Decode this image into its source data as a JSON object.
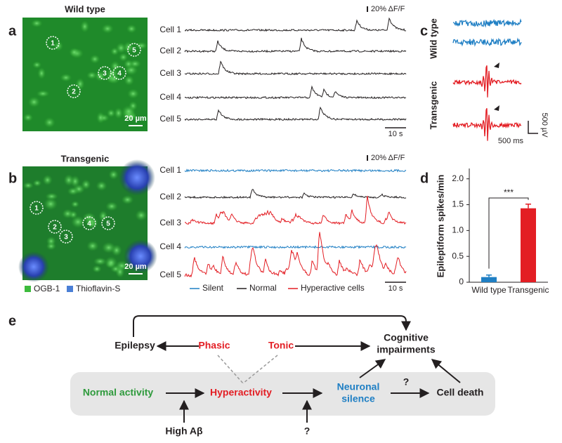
{
  "panel_a": {
    "label": "a",
    "title": "Wild type",
    "cells": [
      "1",
      "2",
      "3",
      "4",
      "5"
    ],
    "scale_bar": "20 µm",
    "traces": [
      "Cell 1",
      "Cell 2",
      "Cell 3",
      "Cell 4",
      "Cell 5"
    ],
    "dff_scale": "20% ΔF/F",
    "time_scale": "10 s"
  },
  "panel_b": {
    "label": "b",
    "title": "Transgenic",
    "cells": [
      "1",
      "2",
      "3",
      "4",
      "5"
    ],
    "scale_bar": "20 µm",
    "traces": [
      {
        "name": "Cell 1",
        "color": "#1f7fc4"
      },
      {
        "name": "Cell 2",
        "color": "#231f20"
      },
      {
        "name": "Cell 3",
        "color": "#e31e24"
      },
      {
        "name": "Cell 4",
        "color": "#1f7fc4"
      },
      {
        "name": "Cell 5",
        "color": "#e31e24"
      }
    ],
    "dff_scale": "20% ΔF/F",
    "time_scale": "10 s",
    "image_legend": [
      {
        "name": "OGB-1",
        "color": "#3dbb3d"
      },
      {
        "name": "Thioflavin-S",
        "color": "#4a7fd6"
      }
    ],
    "trace_legend": [
      {
        "name": "Silent",
        "color": "#1f7fc4"
      },
      {
        "name": "Normal",
        "color": "#231f20"
      },
      {
        "name": "Hyperactive cells",
        "color": "#e31e24"
      }
    ]
  },
  "panel_c": {
    "label": "c",
    "groups": [
      {
        "name": "Wild type",
        "color": "#1f7fc4"
      },
      {
        "name": "Transgenic",
        "color": "#e31e24"
      }
    ],
    "time_scale": "500 ms",
    "voltage_scale": "500 µV"
  },
  "chart_data": {
    "type": "bar",
    "label": "d",
    "y_label": "Epileptiform spikes/min",
    "categories": [
      "Wild type",
      "Transgenic"
    ],
    "values": [
      0.1,
      1.43
    ],
    "errors": [
      0.04,
      0.08
    ],
    "colors": [
      "#1f7fc4",
      "#e31e24"
    ],
    "ylim": [
      0,
      2.2
    ],
    "yticks": [
      0,
      0.5,
      {
        "value": 1,
        "label": "1.0"
      },
      1.5,
      {
        "value": 2,
        "label": "2.0"
      }
    ],
    "significance": "***"
  },
  "panel_e": {
    "label": "e",
    "nodes": [
      {
        "label": "Epilepsy",
        "color": "#231f20"
      },
      {
        "label": "Phasic",
        "color": "#e31e24"
      },
      {
        "label": "Tonic",
        "color": "#e31e24"
      },
      {
        "label": "Cognitive",
        "color": "#231f20"
      },
      {
        "label": "impairments",
        "color": "#231f20"
      },
      {
        "label": "Normal activity",
        "color": "#2e9a3c"
      },
      {
        "label": "Hyperactivity",
        "color": "#e31e24"
      },
      {
        "label": "Neuronal",
        "color": "#1f7fc4"
      },
      {
        "label": "silence",
        "color": "#1f7fc4"
      },
      {
        "label": "Cell death",
        "color": "#231f20"
      },
      {
        "label": "High Aβ",
        "color": "#231f20"
      },
      {
        "label": "?",
        "color": "#231f20"
      },
      {
        "label": "?",
        "color": "#231f20"
      }
    ]
  }
}
